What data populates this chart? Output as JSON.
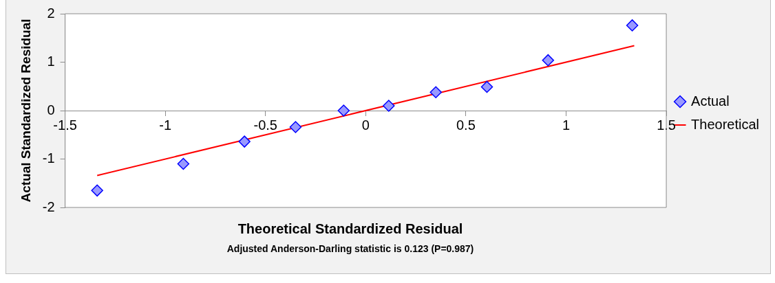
{
  "chart_data": {
    "type": "scatter",
    "xlabel": "Theoretical Standardized Residual",
    "ylabel": "Actual Standardized Residual",
    "annotations": [
      "Adjusted Anderson-Darling statistic is 0.123 (P=0.987)"
    ],
    "xlim": [
      -1.5,
      1.5
    ],
    "xticks": [
      -1.5,
      -1,
      -0.5,
      0,
      0.5,
      1,
      1.5
    ],
    "ylim": [
      -2,
      2
    ],
    "yticks": [
      -2,
      -1,
      0,
      1,
      2
    ],
    "grid": false,
    "legend": "right",
    "series": [
      {
        "name": "Actual",
        "marker": "diamond",
        "color": "#9999ff",
        "x": [
          -1.34,
          -0.91,
          -0.605,
          -0.35,
          -0.11,
          0.115,
          0.35,
          0.605,
          0.91,
          1.33
        ],
        "values": [
          -1.65,
          -1.1,
          -0.64,
          -0.34,
          0.0,
          0.1,
          0.38,
          0.49,
          1.04,
          1.76
        ]
      },
      {
        "name": "Theoretical",
        "type": "line",
        "marker": "none",
        "color": "#ff0000",
        "x": [
          -1.34,
          1.34
        ],
        "values": [
          -1.34,
          1.34
        ]
      }
    ]
  }
}
